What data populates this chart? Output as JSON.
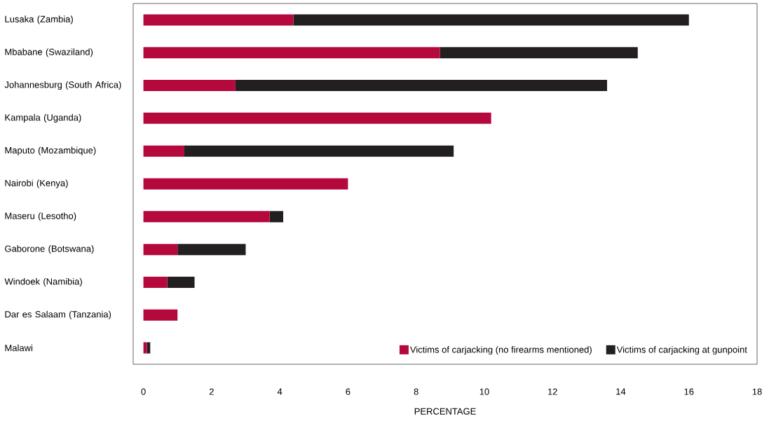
{
  "chart_data": {
    "type": "bar",
    "orientation": "horizontal",
    "stacked": true,
    "categories": [
      "Lusaka (Zambia)",
      "Mbabane (Swaziland)",
      "Johannesburg (South Africa)",
      "Kampala (Uganda)",
      "Maputo (Mozambique)",
      "Nairobi (Kenya)",
      "Maseru (Lesotho)",
      "Gaborone (Botswana)",
      "Windoek (Namibia)",
      "Dar es Salaam (Tanzania)",
      "Malawi"
    ],
    "series": [
      {
        "name": "Victims of carjacking (no firearms mentioned)",
        "color": "#b5093d",
        "values": [
          4.4,
          8.7,
          2.7,
          10.2,
          1.2,
          6.0,
          3.7,
          1.0,
          0.7,
          1.0,
          0.1
        ]
      },
      {
        "name": "Victims of carjacking at gunpoint",
        "color": "#231f20",
        "values": [
          11.6,
          5.8,
          10.9,
          null,
          7.9,
          null,
          0.4,
          2.0,
          0.8,
          null,
          0.1
        ]
      }
    ],
    "xlabel": "PERCENTAGE",
    "xlim": [
      -0.3,
      18
    ],
    "xticks": [
      0,
      2,
      4,
      6,
      8,
      10,
      12,
      14,
      16,
      18
    ],
    "legend": "bottom right",
    "grid": false
  }
}
